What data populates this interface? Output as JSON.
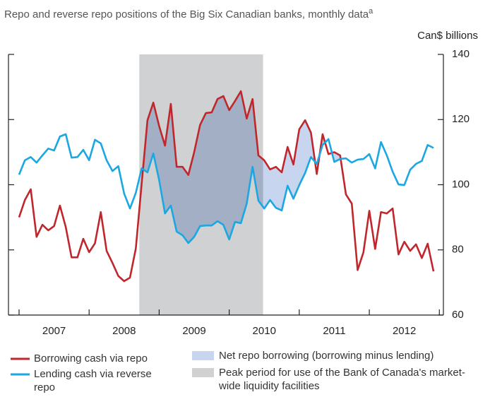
{
  "chart_data": {
    "type": "line",
    "title": "Repo and reverse repo positions of the Big Six Canadian banks, monthly data",
    "title_note": "a",
    "y_axis_label": "Can$ billions",
    "categories": [
      null,
      null,
      null,
      null,
      null,
      null,
      "2007",
      null,
      null,
      null,
      null,
      null,
      null,
      null,
      null,
      null,
      null,
      null,
      "2008",
      null,
      null,
      null,
      null,
      null,
      null,
      null,
      null,
      null,
      null,
      null,
      "2009",
      null,
      null,
      null,
      null,
      null,
      null,
      null,
      null,
      null,
      null,
      null,
      "2010",
      null,
      null,
      null,
      null,
      null,
      null,
      null,
      null,
      null,
      null,
      null,
      "2011",
      null,
      null,
      null,
      null,
      null,
      null,
      null,
      null,
      null,
      null,
      null,
      "2012",
      null,
      null,
      null,
      null,
      null
    ],
    "series": [
      {
        "name": "Borrowing cash via repo",
        "color": "#c0272d",
        "values": [
          90,
          95.3,
          98.6,
          84,
          87.7,
          86,
          87.3,
          93.6,
          87,
          77.7,
          77.7,
          83.4,
          79.3,
          82,
          91.6,
          79.7,
          76,
          72,
          70.4,
          71.5,
          80.4,
          100.3,
          119.8,
          125.2,
          118,
          112,
          124.8,
          105.5,
          105.5,
          103,
          110,
          118.3,
          122,
          122.2,
          126.3,
          127.2,
          122.9,
          125.7,
          128.7,
          120.3,
          126.3,
          109,
          107.5,
          104.7,
          105.5,
          103.8,
          111.6,
          106.2,
          117,
          119.8,
          116,
          103.3,
          115.5,
          109.4,
          110,
          109,
          97,
          94.2,
          73.8,
          79.3,
          92,
          80.3,
          91.6,
          91.2,
          92.7,
          78.6,
          82.5,
          79.7,
          81.7,
          77.5,
          81.9,
          73.4
        ]
      },
      {
        "name": "Lending cash via reverse repo",
        "color": "#1ba7e1",
        "values": [
          103.1,
          107.5,
          108.5,
          106.8,
          109,
          111.1,
          110.5,
          114.8,
          115.5,
          108.3,
          108.5,
          110.7,
          107.5,
          113.8,
          112.7,
          107.5,
          104.2,
          105.7,
          97.3,
          92.7,
          97.5,
          105,
          103.8,
          109.6,
          101.4,
          91.2,
          93.6,
          85.6,
          84.5,
          82.1,
          84,
          87.3,
          87.5,
          87.5,
          88.8,
          87.7,
          83.2,
          88.6,
          88.2,
          94.2,
          105.5,
          95.1,
          92.7,
          95.3,
          92.9,
          92.1,
          99.7,
          95.7,
          99.9,
          103.6,
          108.5,
          106.4,
          112.2,
          114,
          107,
          107.9,
          108.1,
          106.8,
          107.7,
          107.9,
          109.4,
          105,
          113.1,
          109,
          104,
          100.1,
          99.9,
          104.6,
          106.4,
          107.3,
          112.2,
          111.3
        ]
      }
    ],
    "net_label": "Net repo borrowing (borrowing minus lending)",
    "net_color": "#c7d6ee",
    "peak_label": "Peak period for use of the Bank of Canada's market-wide liquidity facilities",
    "peak_color": "#d0d1d3",
    "peak_range": [
      20.6,
      41.8
    ],
    "ylim": [
      60,
      140
    ],
    "yticks": [
      60,
      80,
      100,
      120,
      140
    ],
    "y_axis_side": "right"
  }
}
